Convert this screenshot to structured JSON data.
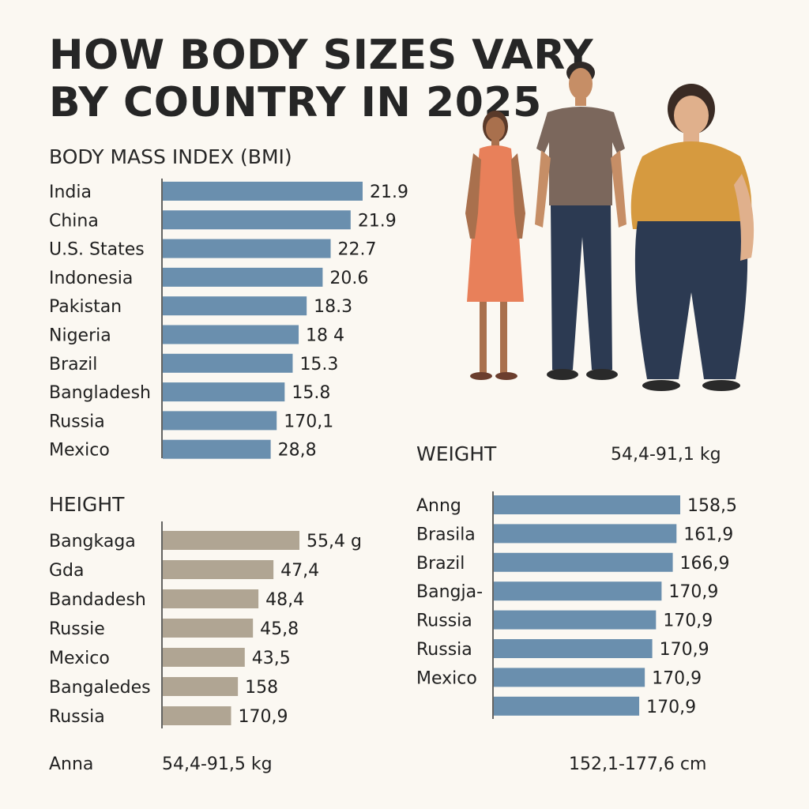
{
  "title": {
    "line1": "HOW BODY SIZES VARY",
    "line2": "BY COUNTRY IN 2025"
  },
  "bmi_label": "BODY MASS INDEX (BMI)",
  "height_label": "HEIGHT",
  "weight_label": "WEIGHT",
  "weight_range": "54,4-91,1 kg",
  "footer_left_name": "Anna",
  "footer_left_range": "54,4-91,5 kg",
  "footer_right_range": "152,1-177,6 cm",
  "colors": {
    "bmi_bar": "#6a8fae",
    "height_bar": "#b0a593",
    "weight_bar": "#6a8fae",
    "background": "#fbf8f2"
  },
  "chart_data": [
    {
      "type": "bar",
      "orientation": "horizontal",
      "title": "BODY MASS INDEX (BMI)",
      "categories": [
        "India",
        "China",
        "U.S. States",
        "Indonesia",
        "Pakistan",
        "Nigeria",
        "Brazil",
        "Bangladesh",
        "Russia",
        "Mexico"
      ],
      "labels": [
        "21.9",
        "21.9",
        "22.7",
        "20.6",
        "18.3",
        "18 4",
        "15.3",
        "15.8",
        "170,1",
        "28,8"
      ],
      "values": [
        100,
        94,
        84,
        80,
        72,
        68,
        65,
        61,
        57,
        54
      ]
    },
    {
      "type": "bar",
      "orientation": "horizontal",
      "title": "HEIGHT",
      "categories": [
        "Bangkaga",
        "Gda",
        "Bandadesh",
        "Russie",
        "Mexico",
        "Bangaledes",
        "Russia"
      ],
      "labels": [
        "55,4 g",
        "47,4",
        "48,4",
        "45,8",
        "43,5",
        "158",
        "170,9"
      ],
      "values": [
        100,
        81,
        70,
        66,
        60,
        55,
        50
      ]
    },
    {
      "type": "bar",
      "orientation": "horizontal",
      "title": "WEIGHT",
      "categories": [
        "Anng",
        "Brasila",
        "Brazil",
        "Bangja-",
        "Russia",
        "Russia",
        "Mexico",
        ""
      ],
      "labels": [
        "158,5",
        "161,9",
        "166,9",
        "170,9",
        "170,9",
        "170,9",
        "170,9",
        "170,9"
      ],
      "values": [
        100,
        98,
        96,
        90,
        87,
        85,
        81,
        78
      ]
    }
  ]
}
